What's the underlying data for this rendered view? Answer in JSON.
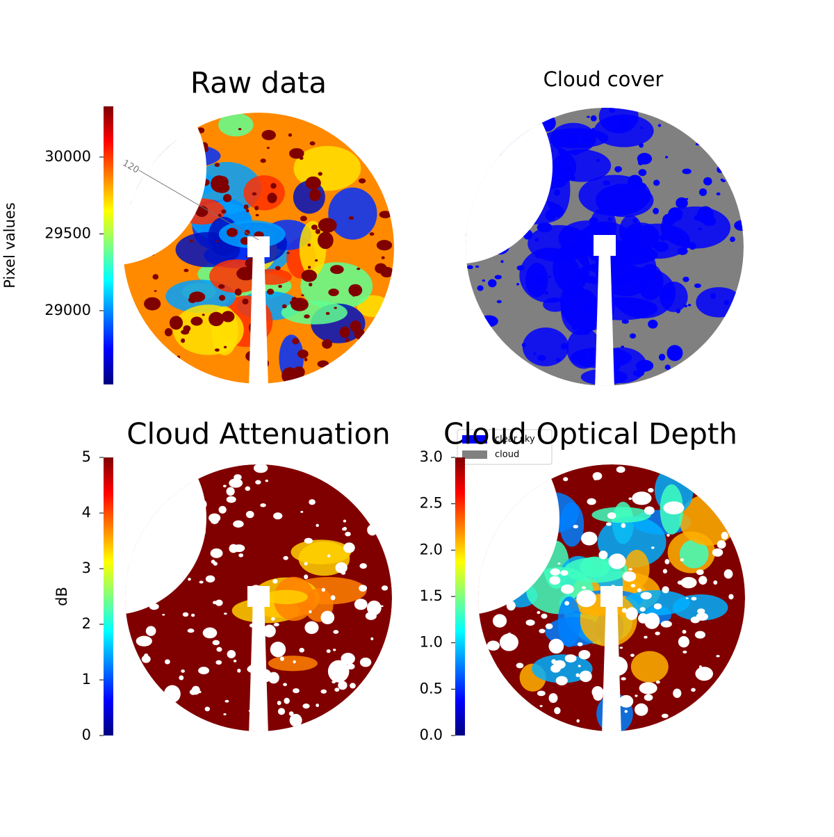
{
  "chart_data": [
    {
      "type": "image",
      "title": "Raw data",
      "colorbar_label": "Pixel values",
      "colormap": "jet",
      "ylim": [
        28520,
        30330
      ],
      "yticks": [
        29000,
        29500,
        30000
      ],
      "annotations": [
        "120"
      ]
    },
    {
      "type": "image",
      "title": "Cloud cover",
      "series": [
        {
          "name": "clear sky",
          "color": "#0000ff"
        },
        {
          "name": "cloud",
          "color": "#808080"
        }
      ]
    },
    {
      "type": "image",
      "title": "Cloud Attenuation",
      "colorbar_label": "dB",
      "colormap": "jet",
      "ylim": [
        0,
        5
      ],
      "yticks": [
        0,
        1,
        2,
        3,
        4,
        5
      ]
    },
    {
      "type": "image",
      "title": "Cloud Optical Depth",
      "colormap": "jet",
      "ylim": [
        0,
        3
      ],
      "yticks": [
        {
          "value": 0,
          "label": "0.0"
        },
        {
          "value": 0.5,
          "label": "0.5"
        },
        {
          "value": 1,
          "label": "1.0"
        },
        {
          "value": 1.5,
          "label": "1.5"
        },
        {
          "value": 2,
          "label": "2.0"
        },
        {
          "value": 2.5,
          "label": "2.5"
        },
        {
          "value": 3,
          "label": "3.0"
        }
      ]
    }
  ]
}
